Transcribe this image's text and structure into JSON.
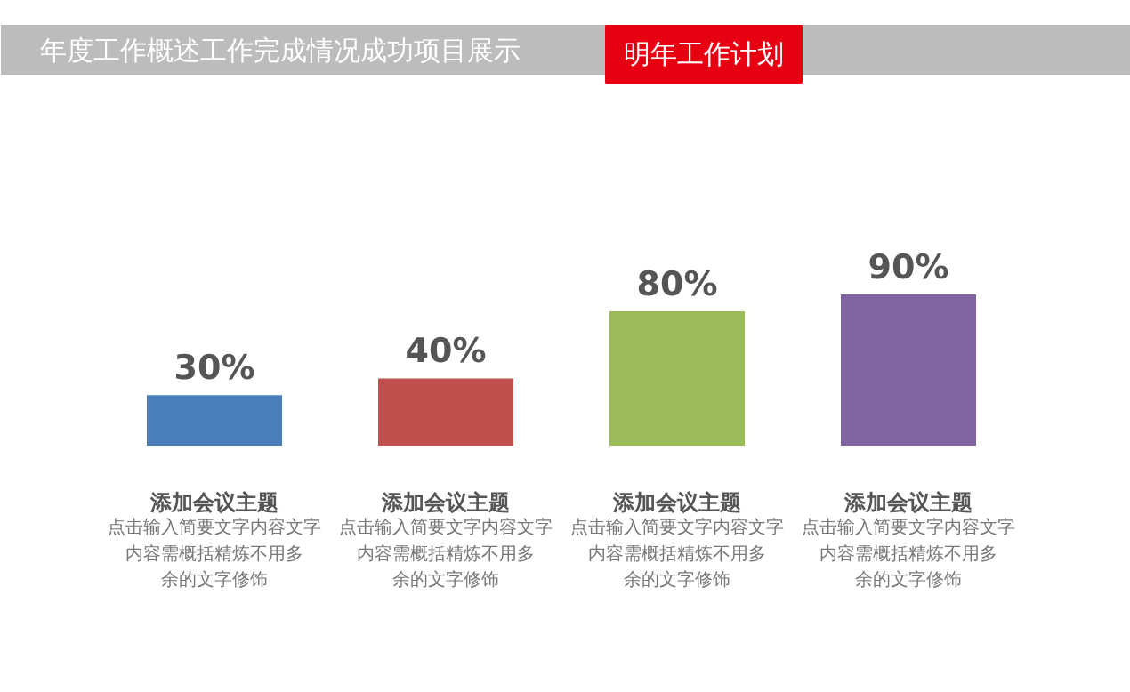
{
  "chart_data": {
    "type": "bar",
    "title": "年度工作概述工作完成情况成功项目展示",
    "subtitle": "明年工作计划",
    "categories": [
      "添加会议主题",
      "添加会议主题",
      "添加会议主题",
      "添加会议主题"
    ],
    "values": [
      30,
      40,
      80,
      90
    ],
    "colors": [
      "#4a7ebb",
      "#c0504d",
      "#9bbb59",
      "#8064a2"
    ],
    "value_labels": [
      "30%",
      "40%",
      "80%",
      "90%"
    ],
    "annotations": [
      "点击输入简要文字内容文字内容需概括精炼不用多余的文字修饰",
      "点击输入简要文字内容文字内容需概括精炼不用多余的文字修饰",
      "点击输入简要文字内容文字内容需概括精炼不用多余的文字修饰",
      "点击输入简要文字内容文字内容需概括精炼不用多余的文字修饰"
    ]
  }
}
